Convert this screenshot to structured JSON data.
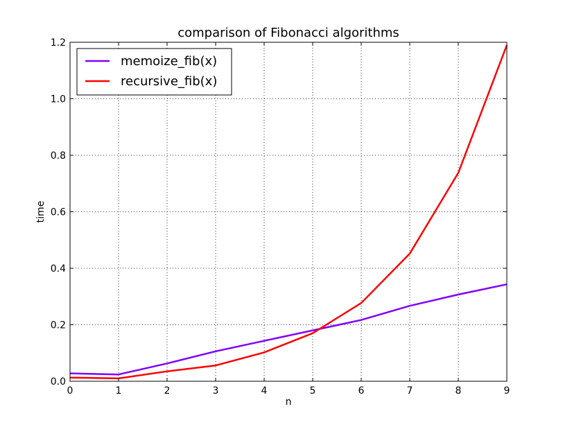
{
  "chart_data": {
    "type": "line",
    "title": "comparison of Fibonacci algorithms",
    "xlabel": "n",
    "ylabel": "time",
    "xlim": [
      0,
      9
    ],
    "ylim": [
      0,
      1.2
    ],
    "x_ticks": [
      "0",
      "1",
      "2",
      "3",
      "4",
      "5",
      "6",
      "7",
      "8",
      "9"
    ],
    "y_ticks": [
      "0.0",
      "0.2",
      "0.4",
      "0.6",
      "0.8",
      "1.0",
      "1.2"
    ],
    "grid": true,
    "legend_position": "top-left",
    "x": [
      0,
      1,
      2,
      3,
      4,
      5,
      6,
      7,
      8,
      9
    ],
    "series": [
      {
        "name": "memoize_fib(x)",
        "color": "#7f00ff",
        "values": [
          0.028,
          0.024,
          0.063,
          0.106,
          0.143,
          0.18,
          0.217,
          0.267,
          0.307,
          0.343
        ]
      },
      {
        "name": "recursive_fib(x)",
        "color": "#ff0000",
        "values": [
          0.013,
          0.01,
          0.035,
          0.056,
          0.102,
          0.17,
          0.277,
          0.452,
          0.738,
          1.19
        ]
      }
    ]
  }
}
